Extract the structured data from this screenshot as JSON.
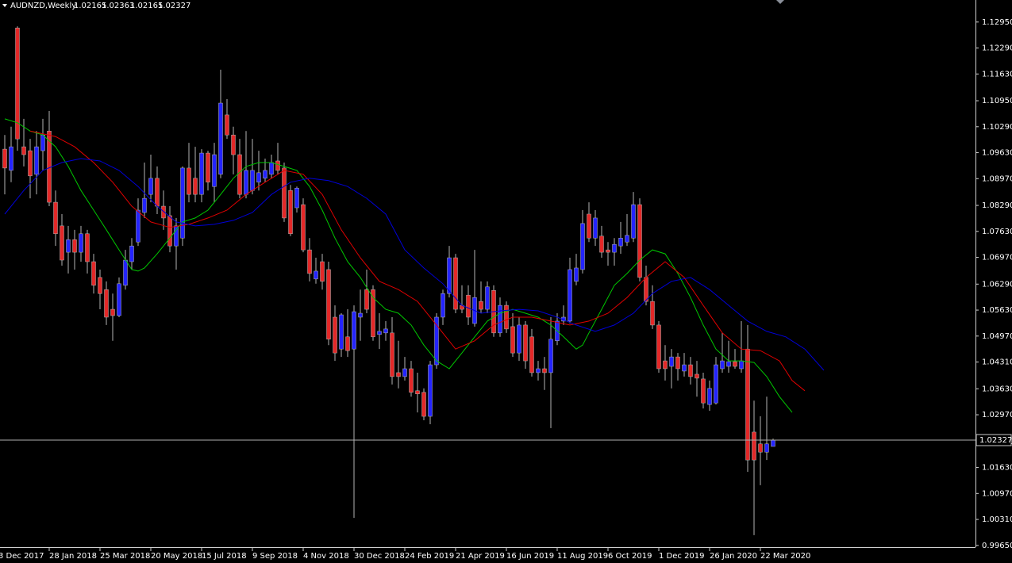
{
  "chart_data": {
    "type": "candlestick",
    "title": "AUDNZD,Weekly",
    "bull_color": "#2424ff",
    "bear_color": "#e42828",
    "wick_color": "#b4b4b4",
    "xlim": [
      -0.75,
      152.875
    ],
    "ylim": [
      0.99606,
      1.1351
    ],
    "xticks": [
      {
        "value": -1,
        "label": "3 Dec 2017"
      },
      {
        "value": 7,
        "label": "28 Jan 2018"
      },
      {
        "value": 15,
        "label": "25 Mar 2018"
      },
      {
        "value": 23,
        "label": "20 May 2018"
      },
      {
        "value": 31,
        "label": "15 Jul 2018"
      },
      {
        "value": 39,
        "label": "9 Sep 2018"
      },
      {
        "value": 47,
        "label": "4 Nov 2018"
      },
      {
        "value": 55,
        "label": "30 Dec 2018"
      },
      {
        "value": 63,
        "label": "24 Feb 2019"
      },
      {
        "value": 71,
        "label": "21 Apr 2019"
      },
      {
        "value": 79,
        "label": "16 Jun 2019"
      },
      {
        "value": 87,
        "label": "11 Aug 2019"
      },
      {
        "value": 95,
        "label": "6 Oct 2019"
      },
      {
        "value": 103,
        "label": "1 Dec 2019"
      },
      {
        "value": 111,
        "label": "26 Jan 2020"
      },
      {
        "value": 119,
        "label": "22 Mar 2020"
      }
    ],
    "yticks": [
      {
        "value": 1.1295,
        "label": "1.12950"
      },
      {
        "value": 1.1229,
        "label": "1.12290"
      },
      {
        "value": 1.1163,
        "label": "1.11630"
      },
      {
        "value": 1.1095,
        "label": "1.10950"
      },
      {
        "value": 1.1029,
        "label": "1.10290"
      },
      {
        "value": 1.0963,
        "label": "1.09630"
      },
      {
        "value": 1.0897,
        "label": "1.08970"
      },
      {
        "value": 1.0829,
        "label": "1.08290"
      },
      {
        "value": 1.0763,
        "label": "1.07630"
      },
      {
        "value": 1.0697,
        "label": "1.06970"
      },
      {
        "value": 1.0629,
        "label": "1.06290"
      },
      {
        "value": 1.0563,
        "label": "1.05630"
      },
      {
        "value": 1.0497,
        "label": "1.04970"
      },
      {
        "value": 1.0431,
        "label": "1.04310"
      },
      {
        "value": 1.0363,
        "label": "1.03630"
      },
      {
        "value": 1.0297,
        "label": "1.02970"
      },
      {
        "value": 1.0229,
        "label": "1.02290"
      },
      {
        "value": 1.0163,
        "label": "1.01630"
      },
      {
        "value": 1.0097,
        "label": "1.00970"
      },
      {
        "value": 1.0031,
        "label": "1.00310"
      },
      {
        "value": 0.9965,
        "label": "0.99650"
      }
    ],
    "open": [
      1.0972,
      1.0918,
      1.128,
      1.0978,
      1.0968,
      1.0908,
      1.0968,
      1.1018,
      1.0837,
      1.0777,
      1.071,
      1.0742,
      1.071,
      1.0757,
      1.0686,
      1.0646,
      1.0615,
      1.0565,
      1.0549,
      1.0626,
      1.0686,
      1.0736,
      1.0811,
      1.0857,
      1.0898,
      1.0827,
      1.0803,
      1.0726,
      1.0746,
      1.0924,
      1.0898,
      1.0857,
      1.0962,
      1.0877,
      1.0908,
      1.1059,
      1.1008,
      1.0958,
      1.0857,
      1.0867,
      1.0888,
      1.0898,
      1.0908,
      1.0942,
      1.0924,
      1.0867,
      1.0823,
      1.0831,
      1.0716,
      1.0642,
      1.0686,
      1.0666,
      1.0545,
      1.0464,
      1.0495,
      1.0464,
      1.0545,
      1.0615,
      1.0615,
      1.0501,
      1.0505,
      1.0505,
      1.0404,
      1.0394,
      1.0414,
      1.0358,
      1.0354,
      1.0293,
      1.0424,
      1.0545,
      1.0605,
      1.0696,
      1.0575,
      1.0601,
      1.0529,
      1.0585,
      1.0565,
      1.0613,
      1.0505,
      1.0575,
      1.0521,
      1.0454,
      1.0525,
      1.0495,
      1.0404,
      1.0414,
      1.0404,
      1.0485,
      1.0535,
      1.0535,
      1.0636,
      1.0666,
      1.0807,
      1.0746,
      1.0751,
      1.0716,
      1.071,
      1.0726,
      1.0736,
      1.0746,
      1.0831,
      1.0646,
      1.0585,
      1.0525,
      1.0434,
      1.042,
      1.0444,
      1.0408,
      1.0424,
      1.04,
      1.0388,
      1.0323,
      1.0327,
      1.0414,
      1.042,
      1.0432,
      1.0414,
      1.0464,
      1.0253,
      1.0223,
      1.0202,
      1.02165
    ],
    "high": [
      1.1008,
      1.1029,
      1.1284,
      1.1049,
      1.0998,
      1.1018,
      1.1049,
      1.1069,
      1.0867,
      1.0807,
      1.0777,
      1.0767,
      1.0777,
      1.0767,
      1.0706,
      1.0666,
      1.0636,
      1.0605,
      1.0646,
      1.0716,
      1.0746,
      1.0847,
      1.0938,
      1.0958,
      1.0928,
      1.0867,
      1.0827,
      1.0797,
      1.0928,
      1.0988,
      1.0978,
      1.0972,
      1.0968,
      1.0988,
      1.1174,
      1.1099,
      1.1029,
      1.0998,
      1.1018,
      1.0998,
      1.0968,
      1.0948,
      1.0958,
      1.0988,
      1.0938,
      1.0881,
      1.0877,
      1.0847,
      1.0746,
      1.0696,
      1.0706,
      1.0686,
      1.0575,
      1.0555,
      1.0565,
      1.0575,
      1.0615,
      1.0666,
      1.0626,
      1.0555,
      1.0535,
      1.0545,
      1.0485,
      1.0444,
      1.0434,
      1.0404,
      1.0364,
      1.0434,
      1.0555,
      1.0615,
      1.0726,
      1.0706,
      1.0626,
      1.0626,
      1.0716,
      1.0636,
      1.0636,
      1.0626,
      1.0595,
      1.0585,
      1.0555,
      1.0545,
      1.0535,
      1.0515,
      1.0434,
      1.0444,
      1.0545,
      1.0555,
      1.0575,
      1.0696,
      1.0706,
      1.0817,
      1.0837,
      1.0817,
      1.0777,
      1.0736,
      1.0746,
      1.0787,
      1.0807,
      1.0863,
      1.0847,
      1.0676,
      1.0626,
      1.0535,
      1.0474,
      1.0464,
      1.0454,
      1.0454,
      1.0444,
      1.0434,
      1.0404,
      1.0384,
      1.0444,
      1.0505,
      1.0485,
      1.0464,
      1.0535,
      1.0525,
      1.0333,
      1.0293,
      1.0343,
      1.02363
    ],
    "low": [
      1.0857,
      1.0888,
      1.0968,
      1.0928,
      1.0847,
      1.0857,
      1.0918,
      1.0827,
      1.0726,
      1.0676,
      1.0656,
      1.0666,
      1.0686,
      1.0656,
      1.0605,
      1.0565,
      1.0525,
      1.0485,
      1.0545,
      1.0615,
      1.0666,
      1.0726,
      1.0797,
      1.0837,
      1.0807,
      1.0767,
      1.071,
      1.0666,
      1.0726,
      1.0837,
      1.0837,
      1.0837,
      1.0867,
      1.0837,
      1.0898,
      1.0998,
      1.0908,
      1.0847,
      1.0847,
      1.0857,
      1.0867,
      1.0888,
      1.0898,
      1.0908,
      1.0787,
      1.0751,
      1.0811,
      1.071,
      1.0636,
      1.063,
      1.0615,
      1.0474,
      1.0434,
      1.0444,
      1.0444,
      1.0035,
      1.0485,
      1.0555,
      1.0485,
      1.0464,
      1.0485,
      1.0374,
      1.0364,
      1.0384,
      1.0343,
      1.0303,
      1.0283,
      1.0273,
      1.0414,
      1.0525,
      1.0595,
      1.0555,
      1.0555,
      1.0525,
      1.0521,
      1.0555,
      1.0555,
      1.0495,
      1.0495,
      1.0505,
      1.0444,
      1.0434,
      1.0414,
      1.0394,
      1.0384,
      1.036,
      1.0263,
      1.0474,
      1.0525,
      1.0529,
      1.0626,
      1.0656,
      1.0736,
      1.0726,
      1.0696,
      1.0676,
      1.0676,
      1.0706,
      1.0726,
      1.0736,
      1.0636,
      1.0575,
      1.0515,
      1.0404,
      1.0384,
      1.0364,
      1.0384,
      1.0394,
      1.0374,
      1.0343,
      1.0313,
      1.0307,
      1.0323,
      1.0404,
      1.0404,
      1.0414,
      1.0404,
      1.0152,
      0.9991,
      1.0118,
      1.0182,
      1.02165
    ],
    "close": [
      1.0924,
      1.0978,
      1.0998,
      1.0958,
      1.0904,
      1.0978,
      1.1008,
      1.0837,
      1.0757,
      1.069,
      1.0742,
      1.071,
      1.0757,
      1.0686,
      1.0626,
      1.0605,
      1.0545,
      1.0549,
      1.063,
      1.069,
      1.0726,
      1.0817,
      1.0847,
      1.0898,
      1.0827,
      1.0797,
      1.0726,
      1.0777,
      1.0924,
      1.0857,
      1.0857,
      1.0962,
      1.0888,
      1.0958,
      1.1089,
      1.1008,
      1.0958,
      1.0857,
      1.0918,
      1.0918,
      1.0912,
      1.0918,
      1.0938,
      1.0918,
      1.0797,
      1.0757,
      1.0873,
      1.0716,
      1.0656,
      1.0662,
      1.0636,
      1.0489,
      1.0454,
      1.0551,
      1.046,
      1.0559,
      1.0555,
      1.0565,
      1.0495,
      1.0509,
      1.0515,
      1.0394,
      1.0394,
      1.0414,
      1.0354,
      1.035,
      1.0293,
      1.0424,
      1.0545,
      1.0605,
      1.0696,
      1.0565,
      1.0565,
      1.0545,
      1.0595,
      1.0565,
      1.0622,
      1.0505,
      1.0575,
      1.0515,
      1.0454,
      1.0525,
      1.0434,
      1.0404,
      1.0414,
      1.0404,
      1.0489,
      1.0535,
      1.0545,
      1.0666,
      1.067,
      1.0783,
      1.0746,
      1.0797,
      1.071,
      1.071,
      1.073,
      1.0746,
      1.0753,
      1.0831,
      1.0646,
      1.0585,
      1.0525,
      1.0414,
      1.0414,
      1.0444,
      1.0414,
      1.0424,
      1.0394,
      1.039,
      1.0327,
      1.0364,
      1.0424,
      1.0434,
      1.0432,
      1.042,
      1.0434,
      1.0182,
      1.0182,
      1.0202,
      1.0223,
      1.02327
    ],
    "series": [
      {
        "color": "#00c800",
        "x": [
          0,
          2,
          4,
          6,
          8,
          10,
          12,
          14,
          16,
          18,
          20,
          21,
          22,
          24,
          26,
          28,
          30,
          32,
          34,
          36,
          38,
          40,
          42,
          44,
          46,
          48,
          50,
          52,
          54,
          56,
          58,
          60,
          62,
          64,
          66,
          68,
          70,
          72,
          74,
          76,
          78,
          80,
          82,
          84,
          86,
          88,
          90,
          91,
          92,
          94,
          96,
          98,
          100,
          102,
          104,
          106,
          108,
          110,
          112,
          114,
          116,
          118,
          120,
          122,
          124
        ],
        "values": [
          1.1049,
          1.1039,
          1.1018,
          1.1008,
          1.0978,
          1.0928,
          1.0867,
          1.0817,
          1.0767,
          1.0716,
          1.0666,
          1.0662,
          1.067,
          1.0706,
          1.0746,
          1.0787,
          1.0797,
          1.0817,
          1.0857,
          1.0898,
          1.0928,
          1.0938,
          1.0938,
          1.0928,
          1.0918,
          1.0877,
          1.0817,
          1.0746,
          1.0686,
          1.0646,
          1.0595,
          1.0565,
          1.0555,
          1.0525,
          1.0474,
          1.0434,
          1.0414,
          1.0454,
          1.0495,
          1.0535,
          1.0555,
          1.0565,
          1.0555,
          1.0545,
          1.0525,
          1.0495,
          1.0464,
          1.0474,
          1.0505,
          1.0565,
          1.0626,
          1.0656,
          1.069,
          1.0716,
          1.0706,
          1.0656,
          1.0595,
          1.0525,
          1.0464,
          1.0434,
          1.0434,
          1.043,
          1.0394,
          1.0343,
          1.0303
        ]
      },
      {
        "color": "#e00000",
        "x": [
          4,
          8,
          11,
          14,
          17,
          20,
          23,
          26,
          29,
          32,
          35,
          38,
          41,
          44,
          47,
          50,
          53,
          56,
          59,
          62,
          65,
          68,
          71,
          74,
          77,
          80,
          83,
          86,
          89,
          92,
          95,
          98,
          101,
          104,
          107,
          110,
          113,
          116,
          119,
          122,
          124,
          126
        ],
        "values": [
          1.1018,
          1.1004,
          1.0978,
          1.0938,
          1.0888,
          1.0827,
          1.0787,
          1.0773,
          1.0781,
          1.0797,
          1.0817,
          1.0857,
          1.0888,
          1.0918,
          1.0908,
          1.0857,
          1.0767,
          1.0696,
          1.0636,
          1.0615,
          1.0585,
          1.0525,
          1.0464,
          1.0485,
          1.0525,
          1.0545,
          1.0545,
          1.0535,
          1.0525,
          1.0535,
          1.0555,
          1.0595,
          1.0646,
          1.0686,
          1.0646,
          1.0575,
          1.0505,
          1.0464,
          1.046,
          1.0434,
          1.0384,
          1.0358
        ]
      },
      {
        "color": "#0000d8",
        "x": [
          0,
          3,
          6,
          9,
          12,
          15,
          18,
          21,
          24,
          27,
          30,
          33,
          36,
          39,
          42,
          45,
          48,
          51,
          54,
          57,
          60,
          63,
          66,
          69,
          72,
          75,
          78,
          81,
          84,
          87,
          90,
          93,
          96,
          99,
          102,
          105,
          108,
          111,
          114,
          117,
          120,
          123,
          126,
          129
        ],
        "values": [
          1.0807,
          1.0867,
          1.0918,
          1.0938,
          1.0948,
          1.0942,
          1.0918,
          1.0877,
          1.0827,
          1.0787,
          1.0777,
          1.0781,
          1.0791,
          1.0811,
          1.0857,
          1.0888,
          1.0898,
          1.0892,
          1.0877,
          1.0847,
          1.0807,
          1.0716,
          1.067,
          1.063,
          1.0575,
          1.0555,
          1.0561,
          1.0565,
          1.0561,
          1.0545,
          1.0525,
          1.0509,
          1.0525,
          1.0555,
          1.0605,
          1.0636,
          1.0646,
          1.0615,
          1.0575,
          1.0535,
          1.0509,
          1.0495,
          1.0464,
          1.041
        ]
      }
    ]
  }
}
